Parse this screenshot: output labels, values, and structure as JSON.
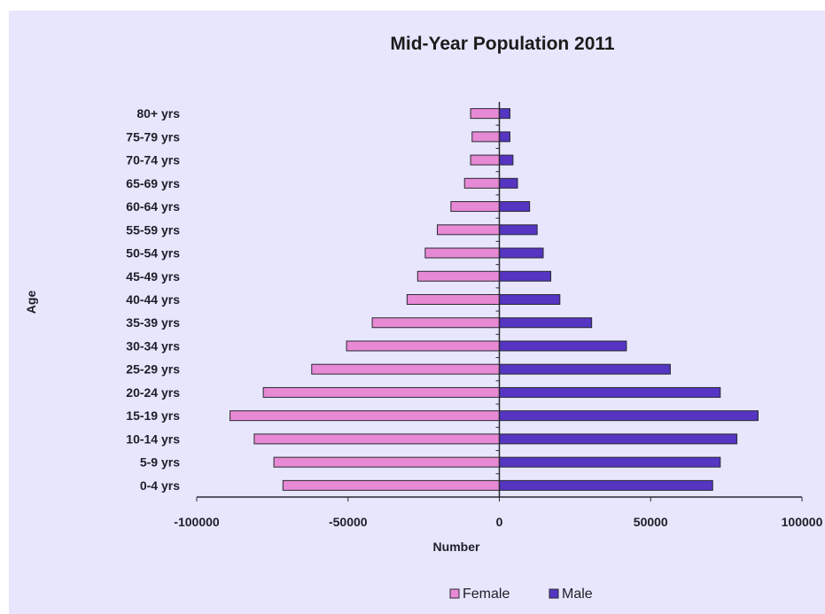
{
  "chart_data": {
    "type": "bar",
    "orientation": "horizontal",
    "title": "Mid-Year Population 2011",
    "xlabel": "Number",
    "ylabel": "Age",
    "xlim": [
      -100000,
      100000
    ],
    "xticks": [
      "-100000",
      "-50000",
      "0",
      "50000",
      "100000"
    ],
    "categories": [
      "0-4 yrs",
      "5-9 yrs",
      "10-14 yrs",
      "15-19 yrs",
      "20-24 yrs",
      "25-29 yrs",
      "30-34 yrs",
      "35-39 yrs",
      "40-44 yrs",
      "45-49 yrs",
      "50-54 yrs",
      "55-59 yrs",
      "60-64 yrs",
      "65-69 yrs",
      "70-74 yrs",
      "75-79 yrs",
      "80+ yrs"
    ],
    "series": [
      {
        "name": "Female",
        "color": "#e889d5",
        "values": [
          -71500,
          -74500,
          -81000,
          -89000,
          -78000,
          -62000,
          -50500,
          -42000,
          -30500,
          -27000,
          -24500,
          -20500,
          -16000,
          -11500,
          -9500,
          -9000,
          -9500
        ]
      },
      {
        "name": "Male",
        "color": "#5535c2",
        "values": [
          70500,
          73000,
          78500,
          85500,
          73000,
          56500,
          42000,
          30500,
          20000,
          17000,
          14500,
          12500,
          10000,
          6000,
          4500,
          3500,
          3500
        ]
      }
    ],
    "grid": false,
    "legend_position": "bottom",
    "plot_background": "#e7e6fc",
    "page_background": "#ffffff"
  }
}
